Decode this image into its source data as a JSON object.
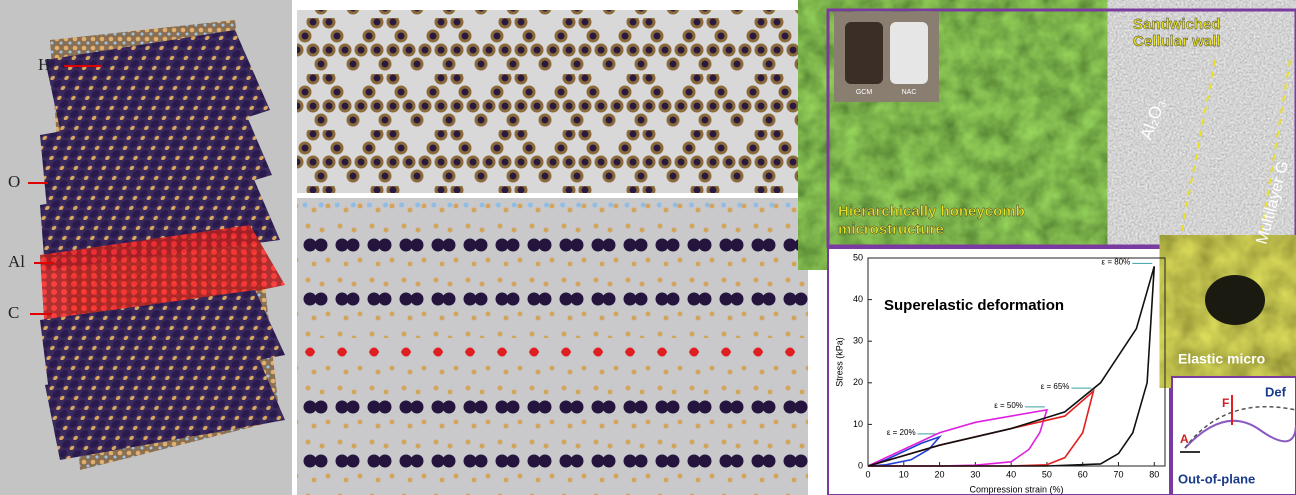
{
  "structure_panel": {
    "labels": [
      "H",
      "O",
      "Al",
      "C"
    ]
  },
  "sem_panel": {
    "inset_labels": [
      "GCM",
      "NAC"
    ],
    "caption": "Hierarchically honeycomb microstructure"
  },
  "tem_panel": {
    "title": "Sandwiched Cellular wall",
    "labels": [
      "Al₂O₃",
      "Multilayer G"
    ]
  },
  "chart_data": {
    "type": "line",
    "title": "Superelastic deformation",
    "x_label": "Compression strain (%)",
    "y_label": "Stress (kPa)",
    "xlim": [
      0,
      83
    ],
    "ylim": [
      0,
      50
    ],
    "xticks": [
      0,
      10,
      20,
      30,
      40,
      50,
      60,
      70,
      80
    ],
    "yticks": [
      0,
      10,
      20,
      30,
      40,
      50
    ],
    "series": [
      {
        "name": "ε = 20%",
        "color": "#1f3fd6",
        "x": [
          0,
          5,
          10,
          15,
          20,
          17,
          12,
          5,
          0
        ],
        "values": [
          0,
          1.5,
          3.5,
          5.5,
          7,
          4,
          1.5,
          0.3,
          0
        ]
      },
      {
        "name": "ε = 50%",
        "color": "#e01fe0",
        "x": [
          0,
          10,
          20,
          30,
          40,
          50,
          48,
          45,
          40,
          30,
          20,
          10,
          0
        ],
        "values": [
          0,
          4,
          8,
          10.5,
          12,
          13.5,
          8,
          4,
          1,
          0.2,
          0,
          0,
          0
        ]
      },
      {
        "name": "ε = 65%",
        "color": "#e0201f",
        "x": [
          0,
          20,
          40,
          55,
          63,
          60,
          55,
          50,
          40,
          20,
          0
        ],
        "values": [
          0,
          5,
          9,
          12,
          18,
          8,
          2,
          0.3,
          0,
          0,
          0
        ]
      },
      {
        "name": "ε = 80%",
        "color": "#111111",
        "x": [
          0,
          20,
          40,
          55,
          65,
          75,
          80,
          78,
          74,
          70,
          65,
          50,
          20,
          0
        ],
        "values": [
          0,
          5,
          9,
          13,
          20,
          33,
          48,
          20,
          8,
          3,
          0.5,
          0,
          0,
          0
        ]
      }
    ]
  },
  "photo_panel": {
    "caption": "Elastic micro"
  },
  "diagram_panel": {
    "title": "Def",
    "force": "F",
    "point": "A",
    "caption": "Out-of-plane"
  }
}
